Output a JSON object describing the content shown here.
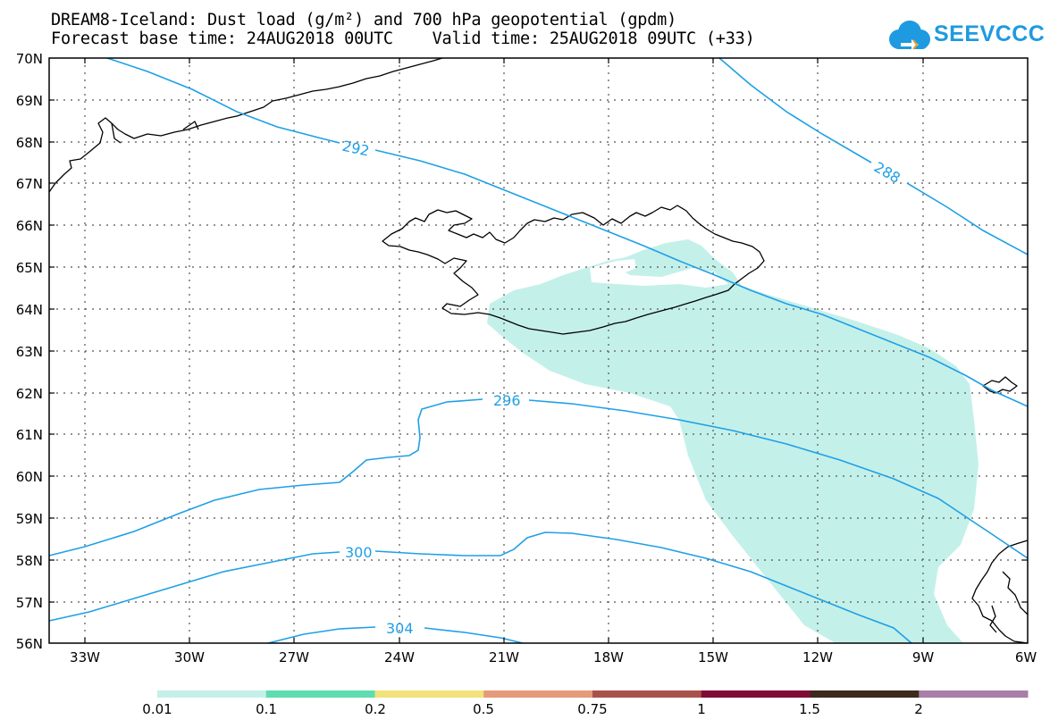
{
  "header": {
    "title_line1": "DREAM8-Iceland: Dust load (g/m²) and 700 hPa geopotential (gpdm)",
    "title_line2": "Forecast base time: 24AUG2018 00UTC    Valid time: 25AUG2018 09UTC (+33)"
  },
  "logo": {
    "text": "SEEVCCC",
    "icon": "cloud-arrow-icon",
    "color": "#1e9ae0"
  },
  "map": {
    "lat_labels": [
      "70N",
      "69N",
      "68N",
      "67N",
      "66N",
      "65N",
      "64N",
      "63N",
      "62N",
      "61N",
      "60N",
      "59N",
      "58N",
      "57N",
      "56N"
    ],
    "lon_labels": [
      "33W",
      "30W",
      "27W",
      "24W",
      "21W",
      "18W",
      "15W",
      "12W",
      "9W",
      "6W"
    ],
    "contour_color": "#1ea0e6",
    "dust_color": "#c4f0ea",
    "contour_labels": {
      "c288": "288",
      "c292": "292",
      "c296": "296",
      "c300": "300",
      "c304": "304"
    }
  },
  "colorbar": {
    "labels": [
      "0.01",
      "0.1",
      "0.2",
      "0.5",
      "0.75",
      "1",
      "1.5",
      "2"
    ],
    "colors": [
      "#c4f0ea",
      "#5fdcb0",
      "#f2e27a",
      "#e59a7a",
      "#a9524c",
      "#800c36",
      "#3d2a1c",
      "#a97ea8"
    ]
  }
}
